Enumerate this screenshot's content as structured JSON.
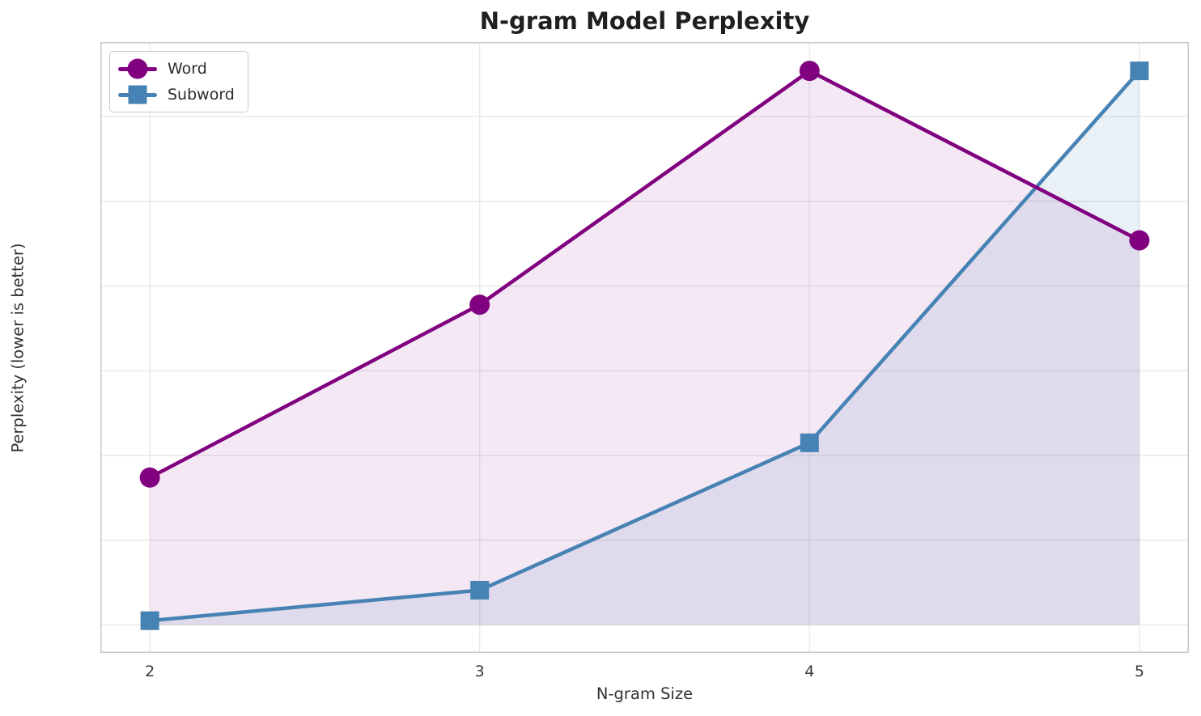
{
  "chart_data": {
    "type": "line",
    "title": "N-gram Model Perplexity",
    "xlabel": "N-gram Size",
    "ylabel": "Perplexity (lower is better)",
    "x": [
      2,
      3,
      4,
      5
    ],
    "series": [
      {
        "name": "Word",
        "marker": "circle",
        "color": "#800080",
        "fill_opacity": 0.09,
        "values": [
          8700,
          18900,
          32700,
          22700
        ]
      },
      {
        "name": "Subword",
        "marker": "square",
        "color": "#4682B4",
        "fill_opacity": 0.12,
        "values": [
          250,
          2050,
          10750,
          32700
        ]
      }
    ],
    "xticks": [
      "2",
      "3",
      "4",
      "5"
    ],
    "xtick_values": [
      2,
      3,
      4,
      5
    ],
    "yticks": [
      "0",
      "5000",
      "10000",
      "15000",
      "20000",
      "25000",
      "30000"
    ],
    "ytick_values": [
      0,
      5000,
      10000,
      15000,
      20000,
      25000,
      30000
    ],
    "xlim": [
      1.85,
      5.15
    ],
    "ylim": [
      -1650,
      34400
    ],
    "grid": true,
    "legend_position": "upper-left",
    "baseline": 0
  },
  "style": {
    "background": "#ffffff",
    "grid_color": "#e8e8e8",
    "spine_color": "#c9c9c9",
    "tick_text_color": "#3a3a3a",
    "title_color": "#1f1f1f",
    "line_width": 4.5
  }
}
